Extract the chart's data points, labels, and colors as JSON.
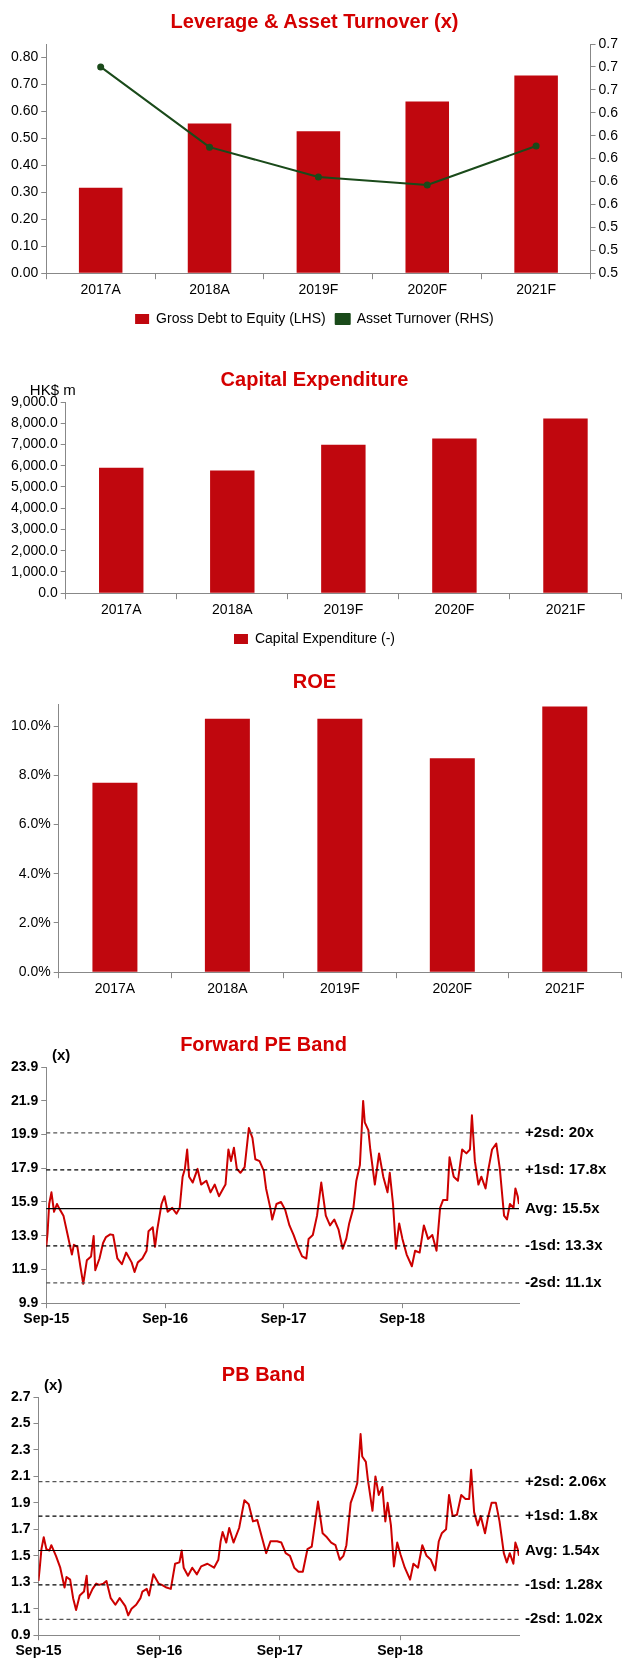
{
  "chart_data": [
    {
      "type": "bar",
      "title": "Leverage & Asset Turnover (x)",
      "categories": [
        "2017A",
        "2018A",
        "2019F",
        "2020F",
        "2021F"
      ],
      "series": [
        {
          "name": "Gross Debt to Equity (LHS)",
          "color": "#c0070e",
          "values": [
            0.317,
            0.555,
            0.526,
            0.637,
            0.733
          ]
        },
        {
          "name": "Asset Turnover (RHS)",
          "type": "line",
          "axis": "y2",
          "color": "#1a4a1a",
          "values": [
            0.68,
            0.61,
            0.584,
            0.577,
            0.611
          ]
        }
      ],
      "ylim": [
        0,
        0.85
      ],
      "yticks": [
        {
          "value": 0,
          "label": "0.00"
        },
        {
          "value": 0.1,
          "label": "0.10"
        },
        {
          "value": 0.2,
          "label": "0.20"
        },
        {
          "value": 0.3,
          "label": "0.30"
        },
        {
          "value": 0.4,
          "label": "0.40"
        },
        {
          "value": 0.5,
          "label": "0.50"
        },
        {
          "value": 0.6,
          "label": "0.60"
        },
        {
          "value": 0.7,
          "label": "0.70"
        },
        {
          "value": 0.8,
          "label": "0.80"
        }
      ],
      "y2lim": [
        0.5,
        0.7
      ],
      "y2ticks": [
        0.5,
        {
          "value": 0.52,
          "label": "0.5"
        },
        {
          "value": 0.54,
          "label": "0.5"
        },
        {
          "value": 0.56,
          "label": "0.6"
        },
        {
          "value": 0.58,
          "label": "0.6"
        },
        0.6,
        {
          "value": 0.62,
          "label": "0.6"
        },
        {
          "value": 0.64,
          "label": "0.6"
        },
        {
          "value": 0.66,
          "label": "0.7"
        },
        {
          "value": 0.68,
          "label": "0.7"
        },
        0.7
      ],
      "legend": "bottom",
      "marker": "circle"
    },
    {
      "type": "bar",
      "title": "Capital Expenditure",
      "ylabel": "HK$ m",
      "categories": [
        "2017A",
        "2018A",
        "2019F",
        "2020F",
        "2021F"
      ],
      "series": [
        {
          "name": "Capital Expenditure (-)",
          "color": "#c0070e",
          "values": [
            5910,
            5770,
            6990,
            7280,
            8220
          ]
        }
      ],
      "ylim": [
        0,
        9000
      ],
      "yticks": [
        {
          "value": 0,
          "label": "0.0"
        },
        {
          "value": 1000,
          "label": "1,000.0"
        },
        {
          "value": 2000,
          "label": "2,000.0"
        },
        {
          "value": 3000,
          "label": "3,000.0"
        },
        {
          "value": 4000,
          "label": "4,000.0"
        },
        {
          "value": 5000,
          "label": "5,000.0"
        },
        {
          "value": 6000,
          "label": "6,000.0"
        },
        {
          "value": 7000,
          "label": "7,000.0"
        },
        {
          "value": 8000,
          "label": "8,000.0"
        },
        {
          "value": 9000,
          "label": "9,000.0"
        }
      ],
      "legend": "bottom"
    },
    {
      "type": "bar",
      "title": "ROE",
      "categories": [
        "2017A",
        "2018A",
        "2019F",
        "2020F",
        "2021F"
      ],
      "color": "#c0070e",
      "values": [
        7.7,
        10.3,
        10.3,
        8.7,
        10.8
      ],
      "ylim": [
        0,
        10.9
      ],
      "yticks": [
        {
          "value": 0,
          "label": "0.0%"
        },
        {
          "value": 2,
          "label": "2.0%"
        },
        {
          "value": 4,
          "label": "4.0%"
        },
        {
          "value": 6,
          "label": "6.0%"
        },
        {
          "value": 8,
          "label": "8.0%"
        },
        {
          "value": 10,
          "label": "10.0%"
        }
      ]
    },
    {
      "type": "line",
      "title": "Forward PE Band",
      "ylabel": "(x)",
      "series": [
        {
          "color": "#cc0000",
          "x": [
            "2015-09-01",
            "2015-09-05",
            "2015-09-10",
            "2015-09-17",
            "2015-09-25",
            "2015-10-04",
            "2015-10-10",
            "2015-10-24",
            "2015-11-06",
            "2015-11-19",
            "2015-11-25",
            "2015-12-06",
            "2015-12-15",
            "2015-12-24",
            "2016-01-04",
            "2016-01-17",
            "2016-01-25",
            "2016-01-30",
            "2016-02-12",
            "2016-02-23",
            "2016-03-03",
            "2016-03-16",
            "2016-03-25",
            "2016-04-07",
            "2016-04-21",
            "2016-05-04",
            "2016-05-21",
            "2016-05-30",
            "2016-06-09",
            "2016-06-23",
            "2016-07-06",
            "2016-07-12",
            "2016-07-25",
            "2016-08-01",
            "2016-08-08",
            "2016-08-21",
            "2016-08-30",
            "2016-09-09",
            "2016-09-23",
            "2016-10-06",
            "2016-10-16",
            "2016-10-25",
            "2016-11-01",
            "2016-11-08",
            "2016-11-14",
            "2016-11-25",
            "2016-12-10",
            "2016-12-21",
            "2017-01-06",
            "2017-01-19",
            "2017-02-01",
            "2017-02-14",
            "2017-02-27",
            "2017-03-06",
            "2017-03-15",
            "2017-03-23",
            "2017-04-01",
            "2017-04-10",
            "2017-04-21",
            "2017-05-04",
            "2017-05-17",
            "2017-05-28",
            "2017-06-06",
            "2017-06-19",
            "2017-07-02",
            "2017-07-09",
            "2017-07-22",
            "2017-07-28",
            "2017-08-10",
            "2017-08-24",
            "2017-09-06",
            "2017-09-19",
            "2017-10-02",
            "2017-10-15",
            "2017-10-28",
            "2017-11-10",
            "2017-11-17",
            "2017-11-30",
            "2017-12-13",
            "2017-12-26",
            "2018-01-09",
            "2018-01-22",
            "2018-02-04",
            "2018-02-17",
            "2018-03-02",
            "2018-03-13",
            "2018-03-22",
            "2018-04-04",
            "2018-04-13",
            "2018-04-24",
            "2018-05-04",
            "2018-05-09",
            "2018-05-20",
            "2018-05-26",
            "2018-06-09",
            "2018-06-22",
            "2018-07-05",
            "2018-07-18",
            "2018-07-25",
            "2018-08-04",
            "2018-08-13",
            "2018-08-23",
            "2018-09-02",
            "2018-09-15",
            "2018-10-01",
            "2018-10-11",
            "2018-10-25",
            "2018-11-07",
            "2018-11-20",
            "2018-12-03",
            "2018-12-16",
            "2018-12-27",
            "2019-01-05",
            "2019-01-18",
            "2019-01-25",
            "2019-02-07",
            "2019-02-20",
            "2019-03-05",
            "2019-03-18",
            "2019-03-29",
            "2019-04-04",
            "2019-04-13",
            "2019-04-24",
            "2019-05-03",
            "2019-05-16",
            "2019-05-25",
            "2019-06-05",
            "2019-06-18",
            "2019-06-29",
            "2019-07-12",
            "2019-07-21",
            "2019-07-30",
            "2019-08-10",
            "2019-08-16",
            "2019-08-23",
            "2019-08-27"
          ],
          "values": [
            13.24,
            14.05,
            15.78,
            16.47,
            15.32,
            15.78,
            15.55,
            15.09,
            13.94,
            12.78,
            13.36,
            13.24,
            12.09,
            11.05,
            12.44,
            12.67,
            13.89,
            11.86,
            12.55,
            13.47,
            13.82,
            13.98,
            13.94,
            12.55,
            12.21,
            12.9,
            12.32,
            11.75,
            12.32,
            12.55,
            13.01,
            14.17,
            14.4,
            13.24,
            14.28,
            15.78,
            16.24,
            15.32,
            15.55,
            15.2,
            15.55,
            17.4,
            17.86,
            19.01,
            17.4,
            17.05,
            17.86,
            16.93,
            17.16,
            16.47,
            16.93,
            16.24,
            16.7,
            16.93,
            19.01,
            18.32,
            19.12,
            17.86,
            17.63,
            17.97,
            20.28,
            19.7,
            18.43,
            18.32,
            17.74,
            16.7,
            15.55,
            14.86,
            15.78,
            15.9,
            15.43,
            14.51,
            13.94,
            13.24,
            12.67,
            12.55,
            13.71,
            13.94,
            15.09,
            17.05,
            15.09,
            14.51,
            14.86,
            14.28,
            13.13,
            13.71,
            14.63,
            15.55,
            17.16,
            18.09,
            21.89,
            20.62,
            20.16,
            19.01,
            16.93,
            18.78,
            17.4,
            16.47,
            17.63,
            15.78,
            13.13,
            14.63,
            13.71,
            12.78,
            12.09,
            13.01,
            12.9,
            14.51,
            13.71,
            13.94,
            13.01,
            15.55,
            16.01,
            16.01,
            18.55,
            17.4,
            17.16,
            19.01,
            18.78,
            19.01,
            21.04,
            18.32,
            16.93,
            17.4,
            16.7,
            17.86,
            19.01,
            19.36,
            17.86,
            15.09,
            14.86,
            15.78,
            15.55,
            16.7,
            16.24,
            15.78
          ]
        }
      ],
      "xlim": [
        "2015-09-01",
        "2019-08-27"
      ],
      "xticks": [
        {
          "value": "2015-09-01",
          "label": "Sep-15"
        },
        {
          "value": "2016-09-01",
          "label": "Sep-16"
        },
        {
          "value": "2017-09-01",
          "label": "Sep-17"
        },
        {
          "value": "2018-09-01",
          "label": "Sep-18"
        }
      ],
      "ylim": [
        9.9,
        23.9
      ],
      "yticks": [
        9.9,
        11.9,
        13.9,
        15.9,
        17.9,
        19.9,
        21.9,
        23.9
      ],
      "ref_lines": [
        {
          "axis": "y",
          "value": 20,
          "label": "+2sd: 20x",
          "color": "#555555",
          "line_style": "dashed"
        },
        {
          "axis": "y",
          "value": 17.8,
          "label": "+1sd: 17.8x",
          "color": "#000000",
          "line_style": "dashed"
        },
        {
          "axis": "y",
          "value": 15.5,
          "label": "Avg: 15.5x",
          "color": "#000000",
          "line_style": "solid"
        },
        {
          "axis": "y",
          "value": 13.3,
          "label": "-1sd: 13.3x",
          "color": "#000000",
          "line_style": "dashed"
        },
        {
          "axis": "y",
          "value": 11.1,
          "label": "-2sd: 11.1x",
          "color": "#555555",
          "line_style": "dashed"
        }
      ]
    },
    {
      "type": "line",
      "title": "PB Band",
      "ylabel": "(x)",
      "series": [
        {
          "color": "#cc0000",
          "x": [
            "2015-09-01",
            "2015-09-05",
            "2015-09-10",
            "2015-09-17",
            "2015-09-25",
            "2015-10-04",
            "2015-10-10",
            "2015-10-24",
            "2015-11-06",
            "2015-11-19",
            "2015-11-25",
            "2015-12-06",
            "2015-12-15",
            "2015-12-24",
            "2016-01-04",
            "2016-01-17",
            "2016-01-25",
            "2016-01-30",
            "2016-02-12",
            "2016-02-23",
            "2016-03-03",
            "2016-03-16",
            "2016-03-25",
            "2016-04-07",
            "2016-04-21",
            "2016-05-04",
            "2016-05-21",
            "2016-05-30",
            "2016-06-09",
            "2016-06-23",
            "2016-07-06",
            "2016-07-12",
            "2016-07-25",
            "2016-08-01",
            "2016-08-14",
            "2016-08-30",
            "2016-09-09",
            "2016-09-23",
            "2016-10-06",
            "2016-10-19",
            "2016-11-01",
            "2016-11-08",
            "2016-11-14",
            "2016-11-27",
            "2016-12-10",
            "2016-12-24",
            "2017-01-06",
            "2017-01-25",
            "2017-02-14",
            "2017-02-27",
            "2017-03-06",
            "2017-03-12",
            "2017-03-23",
            "2017-04-01",
            "2017-04-14",
            "2017-05-01",
            "2017-05-17",
            "2017-05-30",
            "2017-06-12",
            "2017-06-25",
            "2017-07-09",
            "2017-07-22",
            "2017-08-04",
            "2017-08-24",
            "2017-09-06",
            "2017-09-19",
            "2017-10-02",
            "2017-10-15",
            "2017-10-28",
            "2017-11-10",
            "2017-11-24",
            "2017-12-07",
            "2017-12-16",
            "2017-12-26",
            "2018-01-09",
            "2018-01-22",
            "2018-02-04",
            "2018-02-17",
            "2018-03-02",
            "2018-03-13",
            "2018-03-22",
            "2018-04-04",
            "2018-04-17",
            "2018-04-24",
            "2018-05-04",
            "2018-05-09",
            "2018-05-20",
            "2018-05-26",
            "2018-06-09",
            "2018-06-18",
            "2018-06-28",
            "2018-07-09",
            "2018-07-18",
            "2018-07-25",
            "2018-08-04",
            "2018-08-13",
            "2018-08-23",
            "2018-09-02",
            "2018-09-15",
            "2018-10-01",
            "2018-10-11",
            "2018-10-25",
            "2018-11-07",
            "2018-11-20",
            "2018-12-03",
            "2018-12-16",
            "2018-12-27",
            "2019-01-05",
            "2019-01-18",
            "2019-01-27",
            "2019-02-07",
            "2019-02-20",
            "2019-03-05",
            "2019-03-18",
            "2019-03-29",
            "2019-04-04",
            "2019-04-13",
            "2019-04-24",
            "2019-05-03",
            "2019-05-16",
            "2019-05-25",
            "2019-06-05",
            "2019-06-18",
            "2019-06-29",
            "2019-07-12",
            "2019-07-21",
            "2019-07-30",
            "2019-08-10",
            "2019-08-16",
            "2019-08-23",
            "2019-08-27"
          ],
          "values": [
            1.31,
            1.41,
            1.55,
            1.64,
            1.55,
            1.54,
            1.58,
            1.5,
            1.41,
            1.26,
            1.34,
            1.32,
            1.18,
            1.09,
            1.2,
            1.23,
            1.35,
            1.18,
            1.25,
            1.29,
            1.28,
            1.29,
            1.31,
            1.18,
            1.13,
            1.18,
            1.12,
            1.05,
            1.1,
            1.13,
            1.18,
            1.23,
            1.25,
            1.2,
            1.36,
            1.29,
            1.28,
            1.26,
            1.25,
            1.44,
            1.45,
            1.54,
            1.41,
            1.35,
            1.41,
            1.36,
            1.42,
            1.44,
            1.41,
            1.47,
            1.61,
            1.68,
            1.6,
            1.71,
            1.6,
            1.71,
            1.92,
            1.89,
            1.76,
            1.77,
            1.64,
            1.52,
            1.61,
            1.61,
            1.6,
            1.52,
            1.5,
            1.41,
            1.38,
            1.38,
            1.55,
            1.57,
            1.73,
            1.91,
            1.67,
            1.64,
            1.6,
            1.58,
            1.47,
            1.5,
            1.58,
            1.9,
            1.99,
            2.05,
            2.42,
            2.25,
            2.21,
            2.08,
            1.84,
            2.1,
            1.96,
            2.02,
            1.76,
            1.9,
            1.73,
            1.42,
            1.6,
            1.51,
            1.41,
            1.32,
            1.44,
            1.41,
            1.58,
            1.5,
            1.47,
            1.39,
            1.61,
            1.67,
            1.7,
            1.96,
            1.8,
            1.81,
            1.96,
            1.93,
            1.93,
            2.15,
            1.83,
            1.73,
            1.8,
            1.67,
            1.79,
            1.9,
            1.9,
            1.76,
            1.52,
            1.45,
            1.52,
            1.44,
            1.6,
            1.55,
            1.5
          ]
        }
      ],
      "xlim": [
        "2015-09-01",
        "2019-08-27"
      ],
      "xticks": [
        {
          "value": "2015-09-01",
          "label": "Sep-15"
        },
        {
          "value": "2016-09-01",
          "label": "Sep-16"
        },
        {
          "value": "2017-09-01",
          "label": "Sep-17"
        },
        {
          "value": "2018-09-01",
          "label": "Sep-18"
        }
      ],
      "ylim": [
        0.9,
        2.7
      ],
      "yticks": [
        0.9,
        1.1,
        1.3,
        1.5,
        1.7,
        1.9,
        2.1,
        2.3,
        2.5,
        2.7
      ],
      "ref_lines": [
        {
          "axis": "y",
          "value": 2.06,
          "label": "+2sd: 2.06x",
          "color": "#555555",
          "line_style": "dashed"
        },
        {
          "axis": "y",
          "value": 1.8,
          "label": "+1sd: 1.8x",
          "color": "#000000",
          "line_style": "dashed"
        },
        {
          "axis": "y",
          "value": 1.54,
          "label": "Avg: 1.54x",
          "color": "#000000",
          "line_style": "solid"
        },
        {
          "axis": "y",
          "value": 1.28,
          "label": "-1sd: 1.28x",
          "color": "#000000",
          "line_style": "dashed"
        },
        {
          "axis": "y",
          "value": 1.02,
          "label": "-2sd: 1.02x",
          "color": "#555555",
          "line_style": "dashed"
        }
      ]
    }
  ]
}
